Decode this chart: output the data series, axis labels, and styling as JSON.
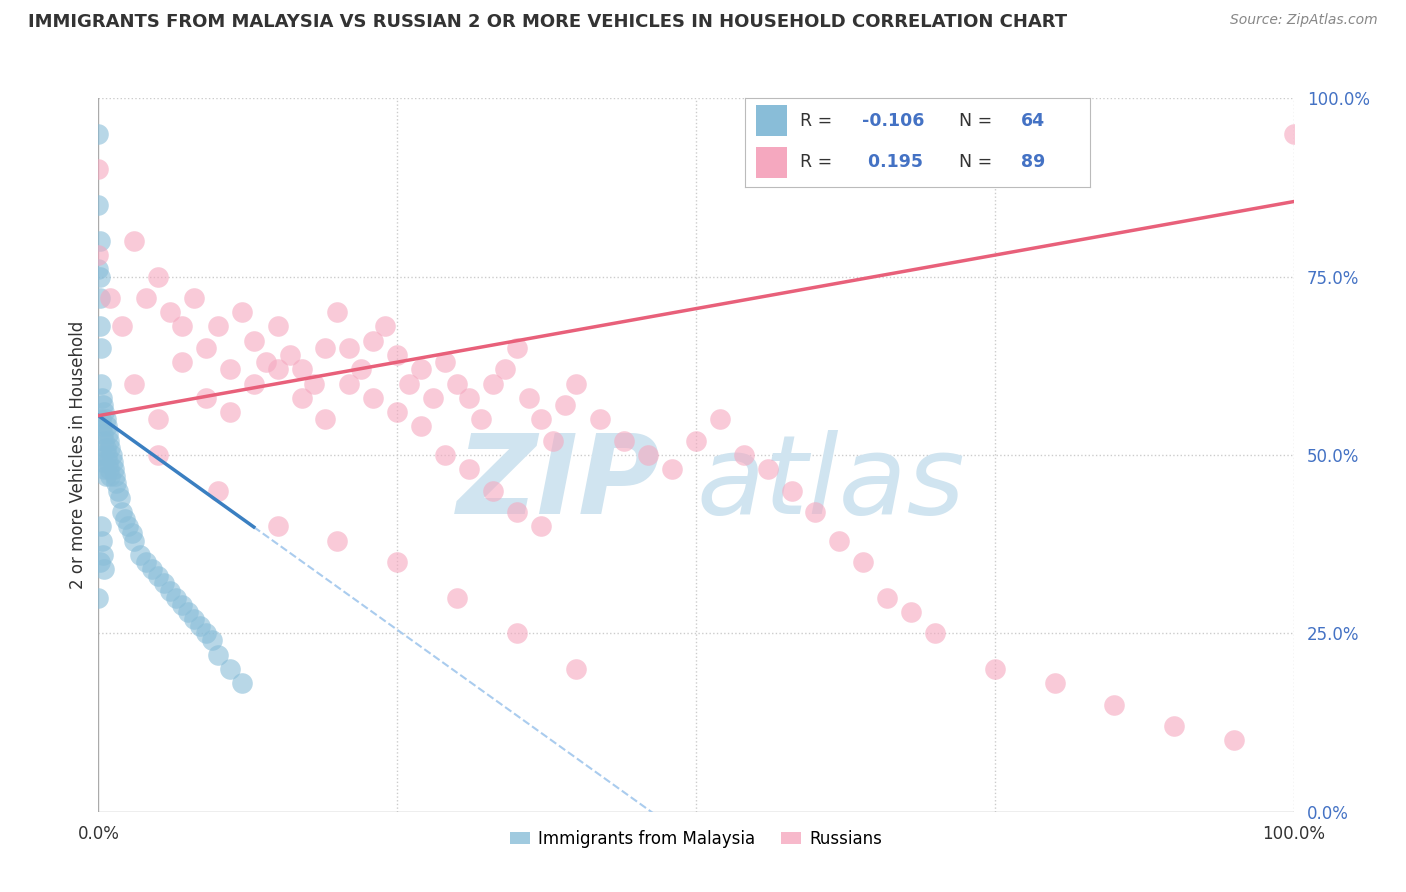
{
  "title": "IMMIGRANTS FROM MALAYSIA VS RUSSIAN 2 OR MORE VEHICLES IN HOUSEHOLD CORRELATION CHART",
  "source": "Source: ZipAtlas.com",
  "ylabel": "2 or more Vehicles in Household",
  "legend_label_1": "Immigrants from Malaysia",
  "legend_label_2": "Russians",
  "R1": -0.106,
  "N1": 64,
  "R2": 0.195,
  "N2": 89,
  "color1": "#89bdd8",
  "color2": "#f5a8bf",
  "trendline1_color": "#3a7fc1",
  "trendline2_color": "#e8607a",
  "background_color": "#ffffff",
  "grid_color": "#cccccc",
  "watermark": "ZIPatlas",
  "watermark_color": "#d0e4f0",
  "xlim": [
    0.0,
    1.0
  ],
  "ylim": [
    0.0,
    1.0
  ],
  "scatter1_x": [
    0.0,
    0.0,
    0.0,
    0.001,
    0.001,
    0.001,
    0.001,
    0.002,
    0.002,
    0.002,
    0.003,
    0.003,
    0.003,
    0.004,
    0.004,
    0.004,
    0.005,
    0.005,
    0.005,
    0.006,
    0.006,
    0.006,
    0.007,
    0.007,
    0.008,
    0.008,
    0.009,
    0.009,
    0.01,
    0.01,
    0.011,
    0.012,
    0.013,
    0.014,
    0.015,
    0.016,
    0.018,
    0.02,
    0.022,
    0.025,
    0.028,
    0.03,
    0.035,
    0.04,
    0.045,
    0.05,
    0.055,
    0.06,
    0.065,
    0.07,
    0.075,
    0.08,
    0.085,
    0.09,
    0.095,
    0.1,
    0.11,
    0.12,
    0.0,
    0.001,
    0.002,
    0.003,
    0.004,
    0.005
  ],
  "scatter1_y": [
    0.95,
    0.85,
    0.76,
    0.8,
    0.75,
    0.72,
    0.68,
    0.65,
    0.6,
    0.55,
    0.58,
    0.54,
    0.5,
    0.57,
    0.53,
    0.49,
    0.56,
    0.52,
    0.48,
    0.55,
    0.51,
    0.47,
    0.54,
    0.5,
    0.53,
    0.49,
    0.52,
    0.48,
    0.51,
    0.47,
    0.5,
    0.49,
    0.48,
    0.47,
    0.46,
    0.45,
    0.44,
    0.42,
    0.41,
    0.4,
    0.39,
    0.38,
    0.36,
    0.35,
    0.34,
    0.33,
    0.32,
    0.31,
    0.3,
    0.29,
    0.28,
    0.27,
    0.26,
    0.25,
    0.24,
    0.22,
    0.2,
    0.18,
    0.3,
    0.35,
    0.4,
    0.38,
    0.36,
    0.34
  ],
  "scatter2_x": [
    0.0,
    0.0,
    0.01,
    0.02,
    0.03,
    0.04,
    0.05,
    0.06,
    0.07,
    0.08,
    0.09,
    0.1,
    0.11,
    0.12,
    0.13,
    0.14,
    0.15,
    0.16,
    0.17,
    0.18,
    0.19,
    0.2,
    0.21,
    0.22,
    0.23,
    0.24,
    0.25,
    0.26,
    0.27,
    0.28,
    0.29,
    0.3,
    0.31,
    0.32,
    0.33,
    0.34,
    0.35,
    0.36,
    0.37,
    0.38,
    0.39,
    0.4,
    0.42,
    0.44,
    0.46,
    0.48,
    0.5,
    0.52,
    0.54,
    0.56,
    0.58,
    0.6,
    0.62,
    0.64,
    0.66,
    0.68,
    0.7,
    0.75,
    0.8,
    0.85,
    0.9,
    0.95,
    1.0,
    0.03,
    0.05,
    0.07,
    0.09,
    0.11,
    0.13,
    0.15,
    0.17,
    0.19,
    0.21,
    0.23,
    0.25,
    0.27,
    0.29,
    0.31,
    0.33,
    0.35,
    0.37,
    0.05,
    0.1,
    0.15,
    0.2,
    0.25,
    0.3,
    0.35,
    0.4
  ],
  "scatter2_y": [
    0.9,
    0.78,
    0.72,
    0.68,
    0.8,
    0.72,
    0.75,
    0.7,
    0.68,
    0.72,
    0.65,
    0.68,
    0.62,
    0.7,
    0.66,
    0.63,
    0.68,
    0.64,
    0.62,
    0.6,
    0.65,
    0.7,
    0.65,
    0.62,
    0.66,
    0.68,
    0.64,
    0.6,
    0.62,
    0.58,
    0.63,
    0.6,
    0.58,
    0.55,
    0.6,
    0.62,
    0.65,
    0.58,
    0.55,
    0.52,
    0.57,
    0.6,
    0.55,
    0.52,
    0.5,
    0.48,
    0.52,
    0.55,
    0.5,
    0.48,
    0.45,
    0.42,
    0.38,
    0.35,
    0.3,
    0.28,
    0.25,
    0.2,
    0.18,
    0.15,
    0.12,
    0.1,
    0.95,
    0.6,
    0.55,
    0.63,
    0.58,
    0.56,
    0.6,
    0.62,
    0.58,
    0.55,
    0.6,
    0.58,
    0.56,
    0.54,
    0.5,
    0.48,
    0.45,
    0.42,
    0.4,
    0.5,
    0.45,
    0.4,
    0.38,
    0.35,
    0.3,
    0.25,
    0.2
  ]
}
